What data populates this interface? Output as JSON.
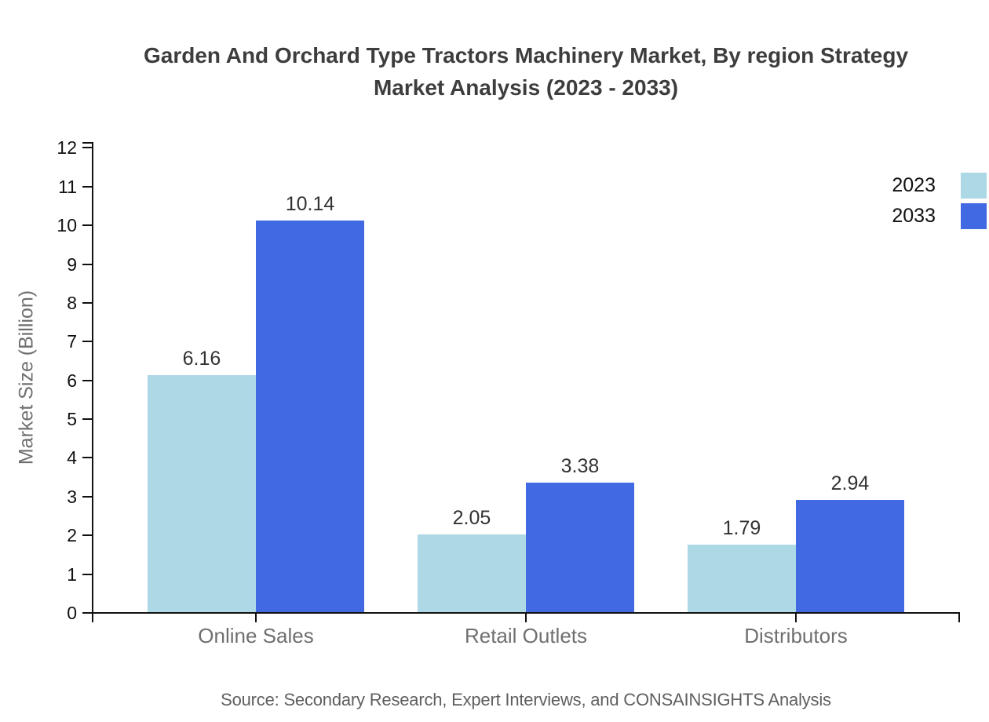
{
  "chart_data": {
    "type": "bar",
    "title": "Garden And Orchard Type Tractors Machinery Market, By region Strategy Market Analysis (2023 - 2033)",
    "title_lines": [
      "Garden And Orchard Type Tractors Machinery Market, By region Strategy",
      "Market Analysis (2023 - 2033)"
    ],
    "categories": [
      "Online Sales",
      "Retail Outlets",
      "Distributors"
    ],
    "series": [
      {
        "name": "2023",
        "color": "#ADD8E6",
        "values": [
          6.16,
          2.05,
          1.79
        ]
      },
      {
        "name": "2033",
        "color": "#4169E1",
        "values": [
          10.14,
          3.38,
          2.94
        ]
      }
    ],
    "xlabel": "",
    "ylabel": "Market Size (Billion)",
    "ylim": [
      0,
      12.13
    ],
    "yticks": [
      0,
      1,
      2,
      3,
      4,
      5,
      6,
      7,
      8,
      9,
      10,
      11,
      12
    ],
    "grid": false,
    "legend_position": "top-right",
    "value_labels_decimals": 2,
    "source": "Source: Secondary Research, Expert Interviews, and CONSAINSIGHTS Analysis",
    "colors": {
      "axis": "#111111",
      "title": "#3d3d3d",
      "muted_text": "#6f6f6f",
      "value_text": "#333333"
    }
  }
}
